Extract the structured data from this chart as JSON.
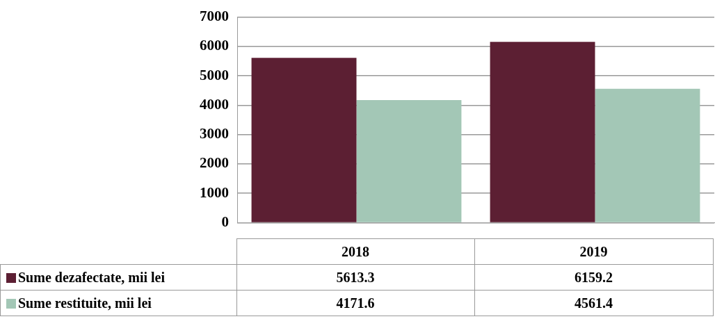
{
  "chart_data": {
    "type": "bar",
    "categories": [
      "2018",
      "2019"
    ],
    "series": [
      {
        "name": "Sume dezafectate, mii lei",
        "color": "#5c1f33",
        "values": [
          5613.3,
          6159.2
        ]
      },
      {
        "name": "Sume restituite, mii lei",
        "color": "#a3c7b6",
        "values": [
          4171.6,
          4561.4
        ]
      }
    ],
    "ylim": [
      0,
      7000
    ],
    "yticks": [
      0,
      1000,
      2000,
      3000,
      4000,
      5000,
      6000,
      7000
    ],
    "grid": "y",
    "legend": "bottom",
    "data_labels": true
  }
}
